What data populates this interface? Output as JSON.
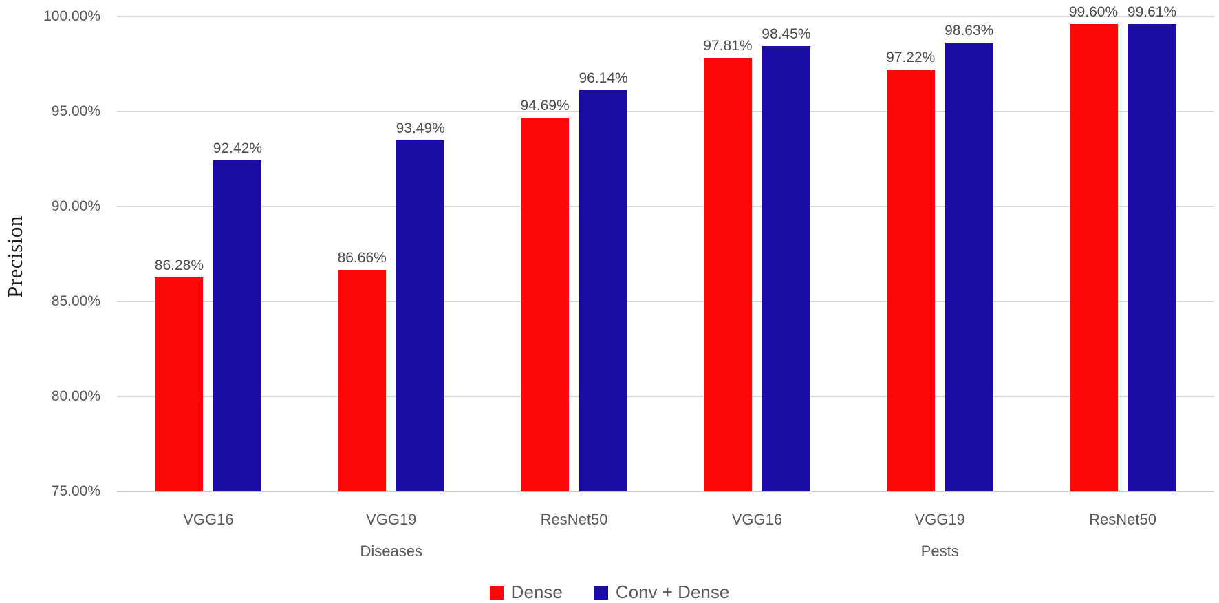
{
  "chart_data": {
    "type": "bar",
    "title": "",
    "xlabel": "",
    "ylabel": "Precision",
    "ylim": [
      75,
      100
    ],
    "ytick_labels": [
      "100.00%",
      "95.00%",
      "90.00%",
      "85.00%",
      "80.00%",
      "75.00%"
    ],
    "ytick_values": [
      100,
      95,
      90,
      85,
      80,
      75
    ],
    "grid": true,
    "legend_position": "bottom",
    "categories": [
      "VGG16",
      "VGG19",
      "ResNet50",
      "VGG16",
      "VGG19",
      "ResNet50"
    ],
    "group_labels": [
      "Diseases",
      "Pests"
    ],
    "group_label_slots": [
      1,
      4
    ],
    "series": [
      {
        "name": "Dense",
        "color": "#fb0707",
        "values": [
          86.28,
          86.66,
          94.69,
          97.81,
          97.22,
          99.6
        ],
        "labels": [
          "86.28%",
          "86.66%",
          "94.69%",
          "97.81%",
          "97.22%",
          "99.60%"
        ]
      },
      {
        "name": "Conv + Dense",
        "color": "#1c0ca6",
        "values": [
          92.42,
          93.49,
          96.14,
          98.45,
          98.63,
          99.61
        ],
        "labels": [
          "92.42%",
          "93.49%",
          "96.14%",
          "98.45%",
          "98.63%",
          "99.61%"
        ]
      }
    ],
    "colors": {
      "grid": "#d9d9d9",
      "axis_line": "#c6c6c6",
      "tick_label": "#595959",
      "data_label": "#4d4d4d",
      "category_label": "#595959",
      "legend_text": "#595959",
      "y_title": "#1a1a1a"
    }
  }
}
